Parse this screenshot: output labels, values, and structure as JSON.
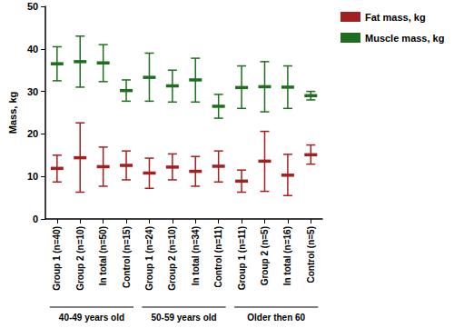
{
  "chart_data": {
    "type": "error_bar",
    "ylabel": "Mass, kg",
    "categories": [
      "Group 1 (n=40)",
      "Group 2 (n=10)",
      "In total (n=50)",
      "Control (n=15)",
      "Group 1 (n=24)",
      "Group 2 (n=10)",
      "In total (n=34)",
      "Control (n=11)",
      "Group 1 (n=11)",
      "Group 2 (n=5)",
      "In total (n=16)",
      "Control (n=5)"
    ],
    "groups": [
      "40-49 years old",
      "50-59 years old",
      "Older then 60"
    ],
    "ylim": [
      0,
      50
    ],
    "yticks": [
      0,
      10,
      20,
      30,
      40,
      50
    ],
    "grid": false,
    "legend": "top-right",
    "series": [
      {
        "name": "Fat mass, kg",
        "color": "#a32020",
        "values": [
          11.9,
          14.4,
          12.3,
          12.6,
          10.8,
          12.2,
          11.2,
          12.4,
          8.9,
          13.6,
          10.3,
          15.1
        ],
        "lower": [
          8.7,
          6.3,
          7.7,
          9.2,
          7.2,
          9.2,
          7.7,
          8.7,
          6.3,
          6.5,
          5.5,
          12.9
        ],
        "upper": [
          15.0,
          22.6,
          16.9,
          16.0,
          14.3,
          15.3,
          14.7,
          16.0,
          11.5,
          20.6,
          15.2,
          17.4
        ]
      },
      {
        "name": "Muscle mass, kg",
        "color": "#1f6e1f",
        "values": [
          36.5,
          37.0,
          36.7,
          30.2,
          33.3,
          31.3,
          32.7,
          26.5,
          30.9,
          31.1,
          31.0,
          29.0
        ],
        "lower": [
          32.5,
          31.0,
          32.3,
          27.7,
          27.7,
          27.5,
          27.5,
          23.7,
          26.0,
          25.2,
          26.0,
          28.0
        ],
        "upper": [
          40.5,
          43.0,
          41.0,
          32.7,
          39.0,
          35.0,
          37.8,
          29.3,
          36.0,
          37.0,
          36.0,
          30.0
        ]
      }
    ]
  }
}
